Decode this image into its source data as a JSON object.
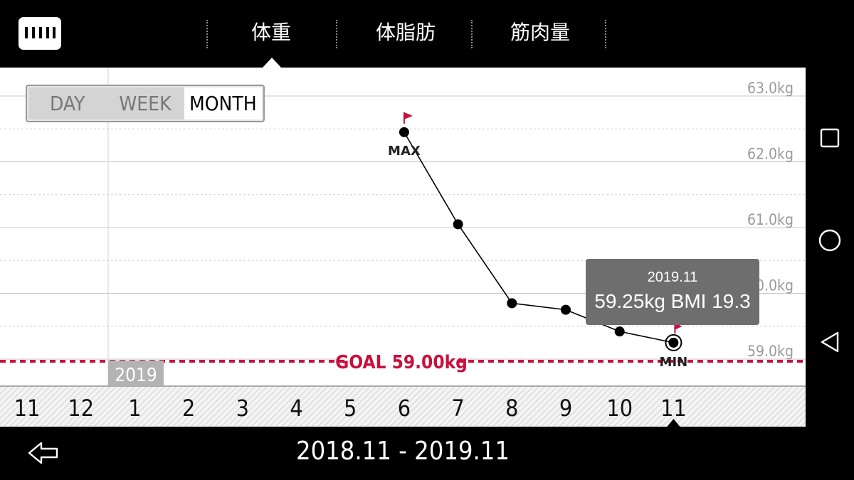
{
  "tabs": [
    {
      "label": "体重",
      "active": true
    },
    {
      "label": "体脂肪",
      "active": false
    },
    {
      "label": "筋肉量",
      "active": false
    }
  ],
  "period_toggle": {
    "options": [
      "DAY",
      "WEEK",
      "MONTH"
    ],
    "selected": "MONTH"
  },
  "chart_data": {
    "type": "line",
    "x": [
      "11",
      "12",
      "1",
      "2",
      "3",
      "4",
      "5",
      "6",
      "7",
      "8",
      "9",
      "10",
      "11"
    ],
    "year_marker": "2019",
    "series": [
      {
        "values": [
          null,
          null,
          null,
          null,
          null,
          null,
          null,
          62.45,
          61.05,
          59.85,
          59.75,
          59.42,
          59.25
        ]
      }
    ],
    "y_tick_labels": [
      "63.0kg",
      "62.0kg",
      "61.0kg",
      "60.0kg",
      "59.0kg"
    ],
    "ylim": [
      58.8,
      63.2
    ],
    "max_label": "MAX",
    "min_label": "MIN",
    "goal": {
      "label": "GOAL 59.00kg",
      "value": 59.0,
      "color": "#c8103c"
    },
    "flag_color": "#c8103c",
    "grid": true
  },
  "tooltip": {
    "date": "2019.11",
    "value": "59.25kg  BMI 19.3"
  },
  "footer": {
    "range": "2018.11 - 2019.11"
  },
  "android_nav": [
    "square-icon",
    "circle-icon",
    "back-triangle-icon"
  ]
}
